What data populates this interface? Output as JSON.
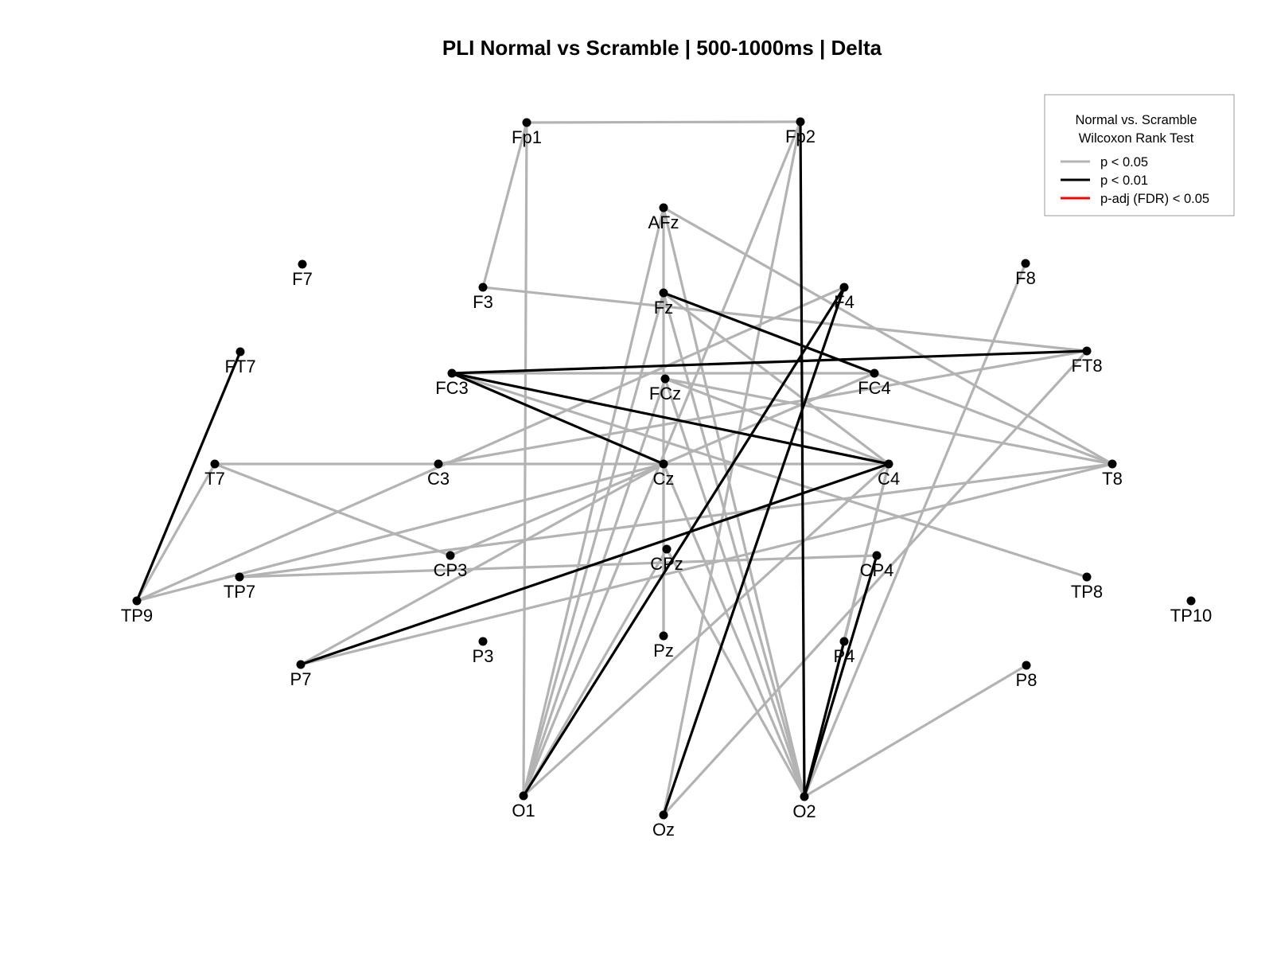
{
  "chart_data": {
    "type": "network",
    "title": "PLI Normal vs Scramble | 500-1000ms |  Delta",
    "legend": {
      "title_lines": [
        "Normal vs. Scramble",
        "Wilcoxon Rank Test"
      ],
      "placement": "top-right",
      "entries": [
        {
          "level": "p05",
          "label": "p < 0.05",
          "color": "#b3b3b3"
        },
        {
          "level": "p01",
          "label": "p < 0.01",
          "color": "#000000"
        },
        {
          "level": "fdr",
          "label": "p-adj (FDR) < 0.05",
          "color": "#ff0000"
        }
      ]
    },
    "nodes": [
      "Fp1",
      "Fp2",
      "AFz",
      "F7",
      "F3",
      "Fz",
      "F4",
      "F8",
      "FT7",
      "FC3",
      "FCz",
      "FC4",
      "FT8",
      "T7",
      "C3",
      "Cz",
      "C4",
      "T8",
      "TP9",
      "TP7",
      "CP3",
      "CPz",
      "CP4",
      "TP8",
      "TP10",
      "P7",
      "P3",
      "Pz",
      "P4",
      "P8",
      "O1",
      "Oz",
      "O2"
    ],
    "edges": [
      {
        "a": "Fp1",
        "b": "Fp2",
        "level": "p05"
      },
      {
        "a": "Fp1",
        "b": "F3",
        "level": "p05"
      },
      {
        "a": "Fp1",
        "b": "O1",
        "level": "p05"
      },
      {
        "a": "Fp2",
        "b": "O1",
        "level": "p05"
      },
      {
        "a": "Fp2",
        "b": "Oz",
        "level": "p05"
      },
      {
        "a": "AFz",
        "b": "T8",
        "level": "p05"
      },
      {
        "a": "AFz",
        "b": "O1",
        "level": "p05"
      },
      {
        "a": "AFz",
        "b": "O2",
        "level": "p05"
      },
      {
        "a": "AFz",
        "b": "Pz",
        "level": "p05"
      },
      {
        "a": "F3",
        "b": "FT8",
        "level": "p05"
      },
      {
        "a": "F4",
        "b": "TP9",
        "level": "p05"
      },
      {
        "a": "Fz",
        "b": "O1",
        "level": "p05"
      },
      {
        "a": "Fz",
        "b": "O2",
        "level": "p05"
      },
      {
        "a": "Fz",
        "b": "C4",
        "level": "p05"
      },
      {
        "a": "FC3",
        "b": "FC4",
        "level": "p05"
      },
      {
        "a": "FC3",
        "b": "TP8",
        "level": "p05"
      },
      {
        "a": "FCz",
        "b": "T8",
        "level": "p05"
      },
      {
        "a": "FCz",
        "b": "O2",
        "level": "p05"
      },
      {
        "a": "FCz",
        "b": "O1",
        "level": "p05"
      },
      {
        "a": "FCz",
        "b": "C4",
        "level": "p05"
      },
      {
        "a": "FC4",
        "b": "T8",
        "level": "p05"
      },
      {
        "a": "FT8",
        "b": "C3",
        "level": "p05"
      },
      {
        "a": "F8",
        "b": "O2",
        "level": "p05"
      },
      {
        "a": "T7",
        "b": "C4",
        "level": "p05"
      },
      {
        "a": "T7",
        "b": "CP3",
        "level": "p05"
      },
      {
        "a": "T7",
        "b": "TP9",
        "level": "p05"
      },
      {
        "a": "Cz",
        "b": "TP9",
        "level": "p05"
      },
      {
        "a": "Cz",
        "b": "P7",
        "level": "p05"
      },
      {
        "a": "Cz",
        "b": "O2",
        "level": "p05"
      },
      {
        "a": "Cz",
        "b": "Pz",
        "level": "p05"
      },
      {
        "a": "C4",
        "b": "O1",
        "level": "p05"
      },
      {
        "a": "C4",
        "b": "O2",
        "level": "p05"
      },
      {
        "a": "T8",
        "b": "TP7",
        "level": "p05"
      },
      {
        "a": "T8",
        "b": "P7",
        "level": "p05"
      },
      {
        "a": "TP7",
        "b": "CP4",
        "level": "p05"
      },
      {
        "a": "CP3",
        "b": "FC4",
        "level": "p05"
      },
      {
        "a": "CPz",
        "b": "O1",
        "level": "p05"
      },
      {
        "a": "CPz",
        "b": "O2",
        "level": "p05"
      },
      {
        "a": "P4",
        "b": "C4",
        "level": "p05"
      },
      {
        "a": "P8",
        "b": "O2",
        "level": "p05"
      },
      {
        "a": "FT8",
        "b": "Oz",
        "level": "p05"
      },
      {
        "a": "Fp2",
        "b": "O2",
        "level": "p01"
      },
      {
        "a": "FT7",
        "b": "TP9",
        "level": "p01"
      },
      {
        "a": "FC3",
        "b": "FT8",
        "level": "p01"
      },
      {
        "a": "FC3",
        "b": "Cz",
        "level": "p01"
      },
      {
        "a": "FC3",
        "b": "C4",
        "level": "p01"
      },
      {
        "a": "Fz",
        "b": "FC4",
        "level": "p01"
      },
      {
        "a": "F4",
        "b": "O1",
        "level": "p01"
      },
      {
        "a": "F4",
        "b": "Oz",
        "level": "p01"
      },
      {
        "a": "C4",
        "b": "P7",
        "level": "p01"
      },
      {
        "a": "CP4",
        "b": "O2",
        "level": "p01"
      },
      {
        "a": "P4",
        "b": "O2",
        "level": "p01"
      }
    ]
  }
}
